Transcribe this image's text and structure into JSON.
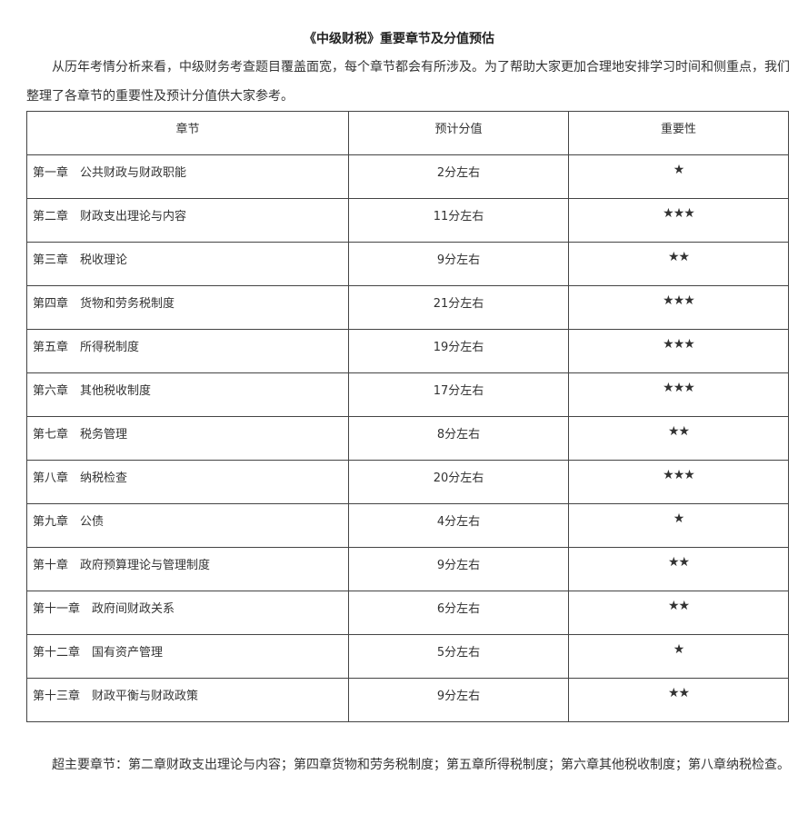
{
  "title": "《中级财税》重要章节及分值预估",
  "intro": "从历年考情分析来看，中级财务考查题目覆盖面宽，每个章节都会有所涉及。为了帮助大家更加合理地安排学习时间和侧重点，我们整理了各章节的重要性及预计分值供大家参考。",
  "table": {
    "headers": [
      "章节",
      "预计分值",
      "重要性"
    ],
    "rows": [
      {
        "chapter": "第一章　公共财政与财政职能",
        "score": "2分左右",
        "stars": 1
      },
      {
        "chapter": "第二章　财政支出理论与内容",
        "score": "11分左右",
        "stars": 3
      },
      {
        "chapter": "第三章　税收理论",
        "score": "9分左右",
        "stars": 2
      },
      {
        "chapter": "第四章　货物和劳务税制度",
        "score": "21分左右",
        "stars": 3
      },
      {
        "chapter": "第五章　所得税制度",
        "score": "19分左右",
        "stars": 3
      },
      {
        "chapter": "第六章　其他税收制度",
        "score": "17分左右",
        "stars": 3
      },
      {
        "chapter": "第七章　税务管理",
        "score": "8分左右",
        "stars": 2
      },
      {
        "chapter": "第八章　纳税检查",
        "score": "20分左右",
        "stars": 3
      },
      {
        "chapter": "第九章　公债",
        "score": "4分左右",
        "stars": 1
      },
      {
        "chapter": "第十章　政府预算理论与管理制度",
        "score": "9分左右",
        "stars": 2
      },
      {
        "chapter": "第十一章　政府间财政关系",
        "score": "6分左右",
        "stars": 2
      },
      {
        "chapter": "第十二章　国有资产管理",
        "score": "5分左右",
        "stars": 1
      },
      {
        "chapter": "第十三章　财政平衡与财政政策",
        "score": "9分左右",
        "stars": 2
      }
    ]
  },
  "summary": "超主要章节：第二章财政支出理论与内容；第四章货物和劳务税制度；第五章所得税制度；第六章其他税收制度；第八章纳税检查。"
}
